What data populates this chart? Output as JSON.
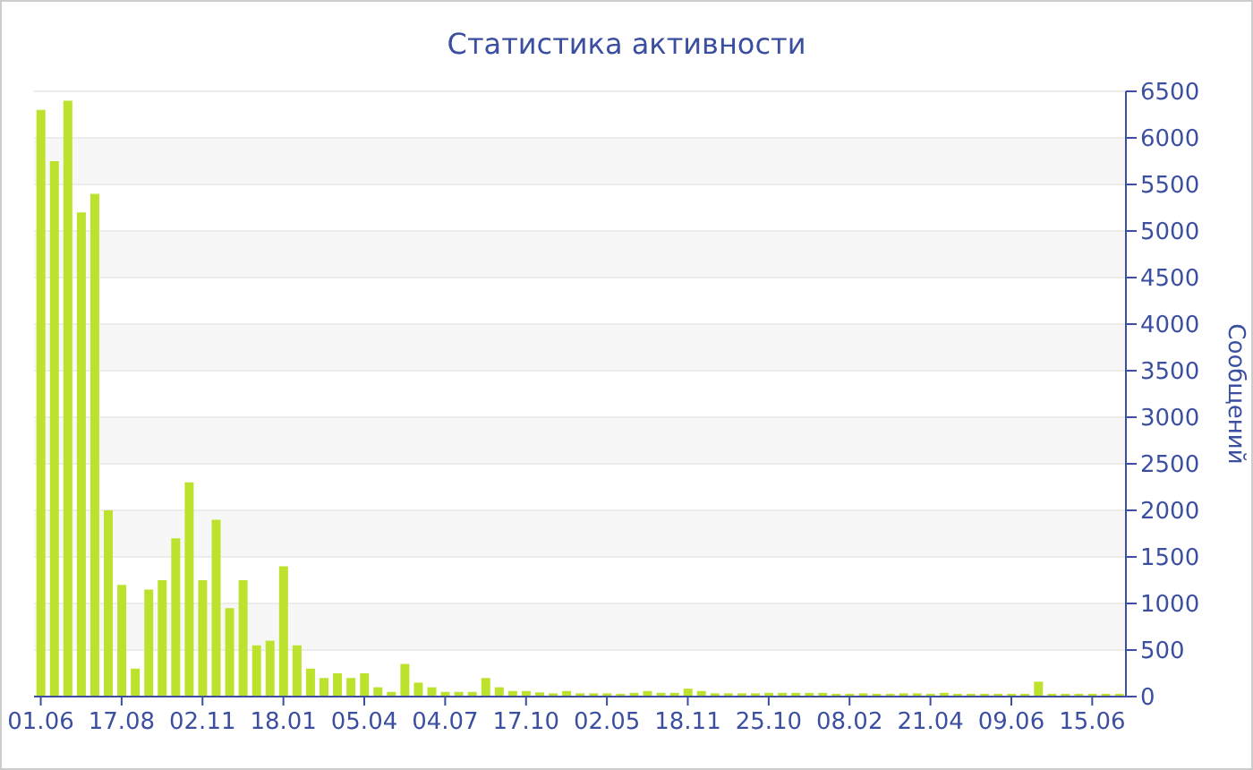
{
  "chart_data": {
    "type": "bar",
    "title": "Статистика активности",
    "ylabel": "Сообщений",
    "categories": [
      "01.06",
      null,
      null,
      null,
      null,
      null,
      "17.08",
      null,
      null,
      null,
      null,
      null,
      "02.11",
      null,
      null,
      null,
      null,
      null,
      "18.01",
      null,
      null,
      null,
      null,
      null,
      "05.04",
      null,
      null,
      null,
      null,
      null,
      "04.07",
      null,
      null,
      null,
      null,
      null,
      "17.10",
      null,
      null,
      null,
      null,
      null,
      "02.05",
      null,
      null,
      null,
      null,
      null,
      "18.11",
      null,
      null,
      null,
      null,
      null,
      "25.10",
      null,
      null,
      null,
      null,
      null,
      "08.02",
      null,
      null,
      null,
      null,
      null,
      "21.04",
      null,
      null,
      null,
      null,
      null,
      "09.06",
      null,
      null,
      null,
      null,
      null,
      "15.06",
      null,
      null
    ],
    "values": [
      6300,
      5750,
      6400,
      5200,
      5400,
      2000,
      1200,
      300,
      1150,
      1250,
      1700,
      2300,
      1250,
      1900,
      950,
      1250,
      550,
      600,
      1400,
      550,
      300,
      200,
      250,
      200,
      250,
      100,
      50,
      350,
      150,
      100,
      50,
      50,
      50,
      200,
      100,
      60,
      60,
      45,
      35,
      60,
      35,
      35,
      35,
      30,
      40,
      60,
      40,
      40,
      85,
      60,
      35,
      35,
      35,
      35,
      40,
      40,
      40,
      40,
      40,
      30,
      30,
      35,
      30,
      30,
      35,
      35,
      30,
      40,
      30,
      30,
      30,
      30,
      30,
      30,
      160,
      30,
      30,
      30,
      30,
      30,
      30
    ],
    "color": "#bde22e",
    "ylim": [
      0,
      6500
    ],
    "yticks": [
      0,
      500,
      1000,
      1500,
      2000,
      2500,
      3000,
      3500,
      4000,
      4500,
      5000,
      5500,
      6000,
      6500
    ],
    "grid": "y"
  }
}
